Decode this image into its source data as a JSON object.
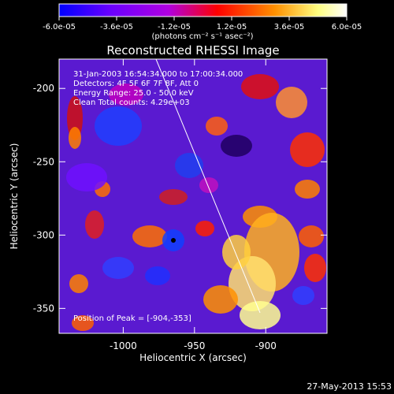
{
  "chart_data": {
    "type": "heatmap",
    "title": "Reconstructed RHESSI Image",
    "xlabel": "Heliocentric X (arcsec)",
    "ylabel": "Heliocentric Y (arcsec)",
    "xlim": [
      -1045,
      -857
    ],
    "ylim": [
      -367,
      -180
    ],
    "xticks": [
      -1000,
      -950,
      -900
    ],
    "yticks": [
      -200,
      -250,
      -300,
      -350
    ],
    "colorbar": {
      "range": [
        -6e-05,
        6e-05
      ],
      "tick_labels": [
        "-6.0e-05",
        "-3.6e-05",
        "-1.2e-05",
        "1.2e-05",
        "3.6e-05",
        "6.0e-05"
      ],
      "unit_label": "(photons cm⁻² s⁻¹ asec⁻²)",
      "colors": [
        "#0000ff",
        "#6a00ff",
        "#b000e0",
        "#ff0000",
        "#ff9000",
        "#ffff80",
        "#ffffff"
      ]
    },
    "annotations": [
      "31-Jan-2003 16:54:34.000 to 17:00:34.000",
      "Detectors: 4F 5F 6F 7F 8F, Att 0",
      "Energy Range: 25.0 - 50.0 keV",
      "Clean     Total counts: 4.29e+03"
    ],
    "peak_label": "Position of Peak = [-904,-353]",
    "limb_line": [
      [
        -977,
        -180
      ],
      [
        -904,
        -353
      ]
    ]
  },
  "footer": {
    "timestamp": "27-May-2013 15:53"
  }
}
